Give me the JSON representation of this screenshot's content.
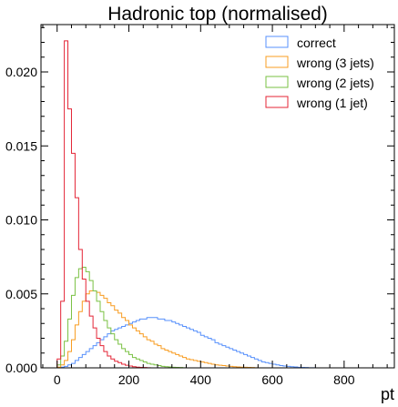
{
  "chart_data": {
    "type": "line",
    "title": "Hadronic top (normalised)",
    "xlabel": "pt",
    "ylabel": "",
    "xlim": [
      -45,
      940
    ],
    "ylim": [
      0,
      0.0232
    ],
    "xticks": [
      0,
      200,
      400,
      600,
      800
    ],
    "xtick_labels": [
      "0",
      "200",
      "400",
      "600",
      "800"
    ],
    "yticks": [
      0,
      0.005,
      0.01,
      0.015,
      0.02
    ],
    "ytick_labels": [
      "0.000",
      "0.005",
      "0.010",
      "0.015",
      "0.020"
    ],
    "legend_position": "top-right",
    "histtype": "step",
    "bin_width": 10,
    "series": [
      {
        "name": "correct",
        "color": "#5790fc",
        "bin_start": 0,
        "values": [
          1e-05,
          5e-05,
          0.0001,
          0.0002,
          0.0003,
          0.0005,
          0.0007,
          0.0009,
          0.0011,
          0.0013,
          0.0015,
          0.0017,
          0.0019,
          0.0021,
          0.0023,
          0.0025,
          0.0026,
          0.0027,
          0.0028,
          0.0029,
          0.003,
          0.0031,
          0.0032,
          0.0033,
          0.0033,
          0.0034,
          0.0034,
          0.0034,
          0.0033,
          0.0033,
          0.0032,
          0.0032,
          0.0031,
          0.003,
          0.0029,
          0.0028,
          0.0027,
          0.0026,
          0.0025,
          0.0024,
          0.0022,
          0.0021,
          0.002,
          0.0019,
          0.0017,
          0.0016,
          0.0015,
          0.0014,
          0.0013,
          0.0012,
          0.0011,
          0.001,
          0.0009,
          0.0008,
          0.0007,
          0.0006,
          0.0005,
          0.0004,
          0.00035,
          0.0003,
          0.00025,
          0.0002,
          0.00015,
          0.00012,
          0.0001,
          8e-05,
          6e-05,
          4e-05,
          3e-05,
          2e-05,
          1e-05,
          1e-05
        ]
      },
      {
        "name": "wrong (3 jets)",
        "color": "#f89c20",
        "bin_start": 0,
        "values": [
          5e-05,
          0.0002,
          0.0005,
          0.0011,
          0.0019,
          0.0029,
          0.0038,
          0.0045,
          0.005,
          0.0052,
          0.0052,
          0.0051,
          0.0049,
          0.0047,
          0.0044,
          0.0042,
          0.0039,
          0.0037,
          0.0034,
          0.0032,
          0.0029,
          0.0027,
          0.0025,
          0.0023,
          0.0021,
          0.0019,
          0.0018,
          0.0016,
          0.0015,
          0.0013,
          0.0012,
          0.0011,
          0.001,
          0.0009,
          0.0008,
          0.0007,
          0.0006,
          0.00055,
          0.0005,
          0.00045,
          0.0004,
          0.00035,
          0.0003,
          0.00025,
          0.0002,
          0.00018,
          0.00015,
          0.00012,
          0.0001,
          8e-05,
          6e-05,
          5e-05,
          4e-05,
          3e-05,
          2e-05,
          1e-05
        ]
      },
      {
        "name": "wrong (2 jets)",
        "color": "#7ac143",
        "bin_start": 0,
        "values": [
          0.0002,
          0.0008,
          0.0018,
          0.0033,
          0.0049,
          0.0061,
          0.0067,
          0.0068,
          0.0065,
          0.0059,
          0.0052,
          0.0045,
          0.0038,
          0.0032,
          0.0027,
          0.0023,
          0.0019,
          0.0016,
          0.0013,
          0.0011,
          0.0009,
          0.0007,
          0.0006,
          0.0005,
          0.0004,
          0.0003,
          0.00025,
          0.0002,
          0.00015,
          0.0001,
          8e-05,
          6e-05,
          4e-05,
          3e-05,
          2e-05,
          1e-05
        ]
      },
      {
        "name": "wrong (1 jet)",
        "color": "#e42536",
        "bin_start": 0,
        "values": [
          0.0006,
          0.0045,
          0.0221,
          0.0175,
          0.0145,
          0.0115,
          0.008,
          0.006,
          0.0045,
          0.0035,
          0.0027,
          0.002,
          0.0015,
          0.0011,
          0.0008,
          0.0006,
          0.00045,
          0.00035,
          0.00025,
          0.00018,
          0.00012,
          8e-05,
          5e-05,
          3e-05,
          2e-05,
          1e-05
        ]
      }
    ]
  }
}
